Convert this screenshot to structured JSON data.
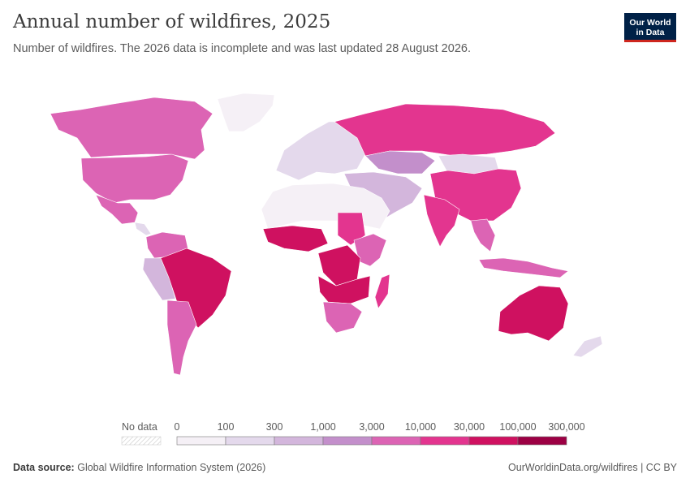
{
  "header": {
    "title": "Annual number of wildfires, 2025",
    "subtitle": "Number of wildfires. The 2026 data is incomplete and was last updated 28 August 2026."
  },
  "logo": {
    "line1": "Our World",
    "line2": "in Data"
  },
  "legend": {
    "no_data_label": "No data",
    "ticks": [
      "0",
      "100",
      "300",
      "1,000",
      "3,000",
      "10,000",
      "30,000",
      "100,000",
      "300,000"
    ],
    "colors": [
      "#f5f0f6",
      "#e4d9ec",
      "#d3b6dc",
      "#c38fcb",
      "#dc64b4",
      "#e3358f",
      "#cf1160",
      "#9c0044"
    ]
  },
  "footer": {
    "source_label": "Data source:",
    "source_text": "Global Wildfire Information System (2026)",
    "url_license": "OurWorldinData.org/wildfires | CC BY"
  },
  "regions": [
    {
      "name": "Greenland",
      "color": "#f5f0f6"
    },
    {
      "name": "Canada",
      "color": "#dc64b4"
    },
    {
      "name": "United States",
      "color": "#dc64b4"
    },
    {
      "name": "Mexico",
      "color": "#dc64b4"
    },
    {
      "name": "Brazil",
      "color": "#cf1160"
    },
    {
      "name": "Argentina",
      "color": "#dc64b4"
    },
    {
      "name": "Russia",
      "color": "#e3358f"
    },
    {
      "name": "China",
      "color": "#e3358f"
    },
    {
      "name": "India",
      "color": "#e3358f"
    },
    {
      "name": "Australia",
      "color": "#cf1160"
    },
    {
      "name": "DR Congo",
      "color": "#cf1160"
    },
    {
      "name": "Angola",
      "color": "#cf1160"
    },
    {
      "name": "Sudan",
      "color": "#e3358f"
    },
    {
      "name": "South Africa",
      "color": "#dc64b4"
    },
    {
      "name": "Sahara",
      "color": "#f5f0f6"
    },
    {
      "name": "Europe",
      "color": "#e4d9ec"
    },
    {
      "name": "Kazakhstan",
      "color": "#c38fcb"
    },
    {
      "name": "Mongolia",
      "color": "#e4d9ec"
    },
    {
      "name": "Indonesia",
      "color": "#dc64b4"
    },
    {
      "name": "Madagascar",
      "color": "#e3358f"
    },
    {
      "name": "Middle East",
      "color": "#d3b6dc"
    },
    {
      "name": "Colombia",
      "color": "#dc64b4"
    },
    {
      "name": "Peru",
      "color": "#d3b6dc"
    }
  ]
}
